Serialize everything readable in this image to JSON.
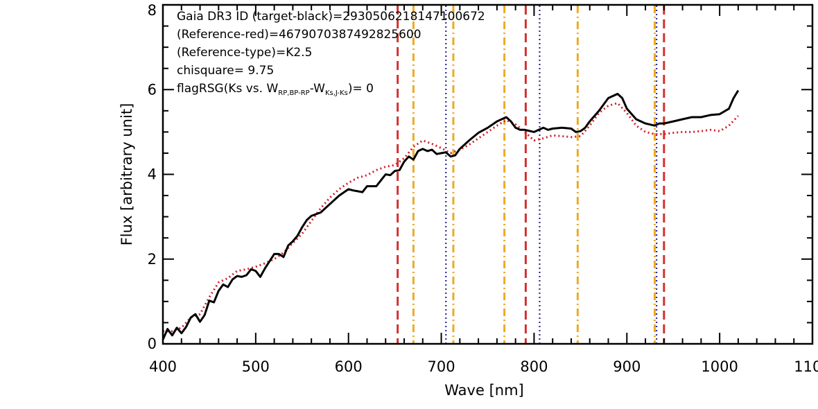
{
  "chart_data": {
    "type": "line",
    "xlabel": "Wave [nm]",
    "ylabel": "Flux [arbitrary unit]",
    "xlim": [
      400,
      1100
    ],
    "ylim": [
      0,
      8
    ],
    "xticks": [
      400,
      500,
      600,
      700,
      800,
      900,
      1000,
      1100
    ],
    "xtick_labels": [
      "400",
      "500",
      "600",
      "700",
      "800",
      "900",
      "1000",
      "1100"
    ],
    "yticks": [
      0,
      2,
      4,
      6,
      8
    ],
    "ytick_labels": [
      "0",
      "2",
      "4",
      "6",
      "8"
    ],
    "grid": false,
    "annotations": {
      "line1": "Gaia DR3 ID (target-black)=2930506218147100672",
      "line2": "(Reference-red)=4679070387492825600",
      "line3": "(Reference-type)=K2.5",
      "line4": "chisquare= 9.75",
      "line5_prefix": "flagRSG(Ks vs. W",
      "line5_sub1": "RP,BP-RP",
      "line5_mid": "-W",
      "line5_sub2": "Ks,J-Ks",
      "line5_suffix": ")= 0"
    },
    "series": [
      {
        "color": "#000000",
        "style": "solid",
        "x": [
          400,
          405,
          410,
          415,
          420,
          425,
          430,
          435,
          440,
          445,
          450,
          455,
          460,
          465,
          470,
          475,
          480,
          485,
          490,
          495,
          500,
          505,
          510,
          515,
          520,
          525,
          530,
          535,
          540,
          545,
          550,
          555,
          560,
          570,
          580,
          590,
          600,
          605,
          610,
          615,
          620,
          630,
          640,
          645,
          650,
          655,
          660,
          665,
          670,
          675,
          680,
          685,
          690,
          695,
          700,
          705,
          710,
          715,
          720,
          730,
          740,
          750,
          760,
          770,
          775,
          780,
          785,
          790,
          800,
          810,
          815,
          820,
          830,
          840,
          845,
          850,
          855,
          860,
          870,
          880,
          890,
          895,
          900,
          910,
          920,
          930,
          935,
          940,
          950,
          960,
          970,
          980,
          990,
          1000,
          1010,
          1015,
          1020
        ],
        "y": [
          0.1,
          0.35,
          0.2,
          0.38,
          0.25,
          0.4,
          0.62,
          0.7,
          0.52,
          0.68,
          1.02,
          0.98,
          1.25,
          1.4,
          1.34,
          1.52,
          1.6,
          1.58,
          1.62,
          1.76,
          1.72,
          1.58,
          1.78,
          1.95,
          2.12,
          2.12,
          2.05,
          2.32,
          2.42,
          2.55,
          2.75,
          2.92,
          3.02,
          3.1,
          3.3,
          3.5,
          3.65,
          3.62,
          3.6,
          3.58,
          3.72,
          3.72,
          4.0,
          3.98,
          4.08,
          4.1,
          4.3,
          4.42,
          4.35,
          4.55,
          4.6,
          4.55,
          4.58,
          4.48,
          4.5,
          4.52,
          4.42,
          4.45,
          4.6,
          4.8,
          4.98,
          5.1,
          5.25,
          5.35,
          5.25,
          5.1,
          5.05,
          5.05,
          5.0,
          5.1,
          5.05,
          5.08,
          5.1,
          5.08,
          5.0,
          5.02,
          5.1,
          5.25,
          5.5,
          5.8,
          5.9,
          5.8,
          5.55,
          5.3,
          5.2,
          5.15,
          5.2,
          5.2,
          5.25,
          5.3,
          5.35,
          5.35,
          5.4,
          5.42,
          5.55,
          5.8,
          5.98
        ]
      },
      {
        "color": "#d0202a",
        "style": "dotted",
        "x": [
          400,
          410,
          420,
          430,
          440,
          450,
          460,
          470,
          480,
          490,
          500,
          510,
          520,
          530,
          540,
          550,
          560,
          570,
          580,
          590,
          600,
          610,
          620,
          630,
          640,
          650,
          660,
          670,
          680,
          690,
          700,
          710,
          720,
          730,
          740,
          750,
          760,
          770,
          780,
          790,
          800,
          810,
          820,
          830,
          840,
          850,
          860,
          870,
          880,
          890,
          900,
          910,
          920,
          930,
          940,
          950,
          960,
          970,
          980,
          990,
          1000,
          1010,
          1020
        ],
        "y": [
          0.3,
          0.3,
          0.38,
          0.62,
          0.7,
          1.1,
          1.45,
          1.55,
          1.72,
          1.76,
          1.82,
          1.9,
          2.0,
          2.15,
          2.38,
          2.6,
          2.9,
          3.2,
          3.45,
          3.65,
          3.8,
          3.92,
          3.98,
          4.1,
          4.18,
          4.22,
          4.38,
          4.65,
          4.8,
          4.72,
          4.62,
          4.5,
          4.58,
          4.7,
          4.85,
          5.0,
          5.15,
          5.28,
          5.18,
          5.0,
          4.8,
          4.85,
          4.92,
          4.9,
          4.88,
          4.9,
          5.15,
          5.45,
          5.62,
          5.68,
          5.45,
          5.15,
          5.0,
          4.95,
          4.95,
          4.98,
          5.0,
          5.0,
          5.02,
          5.05,
          5.02,
          5.15,
          5.38
        ]
      }
    ],
    "vlines": [
      {
        "x": 653,
        "color": "#d32f2f",
        "style": "dashed"
      },
      {
        "x": 670,
        "color": "#eeaa22",
        "style": "dashdot"
      },
      {
        "x": 705,
        "color": "#2a2a90",
        "style": "dotted"
      },
      {
        "x": 713,
        "color": "#eeaa22",
        "style": "dashdot"
      },
      {
        "x": 768,
        "color": "#eeaa22",
        "style": "dashdot"
      },
      {
        "x": 791,
        "color": "#d32f2f",
        "style": "dashed"
      },
      {
        "x": 806,
        "color": "#2a2a90",
        "style": "dotted"
      },
      {
        "x": 847,
        "color": "#eeaa22",
        "style": "dashdot"
      },
      {
        "x": 930,
        "color": "#eeaa22",
        "style": "dashdot"
      },
      {
        "x": 932,
        "color": "#2a2a90",
        "style": "dotted"
      },
      {
        "x": 940,
        "color": "#d32f2f",
        "style": "dashed"
      }
    ]
  }
}
